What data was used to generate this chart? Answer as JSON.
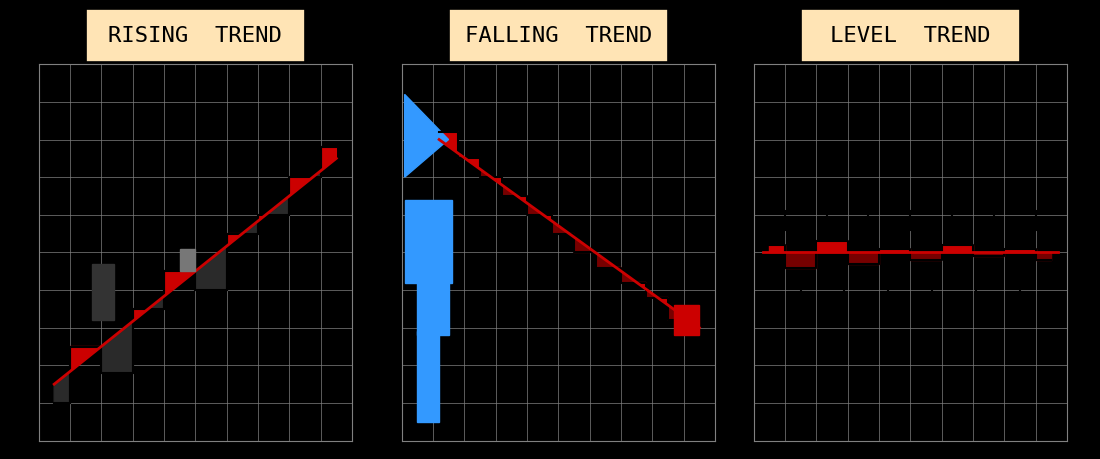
{
  "bg_color": "#000000",
  "grid_color": "#808080",
  "title_bg": "#FFE4B5",
  "title_color": "#000000",
  "panel_titles": [
    "RISING  TREND",
    "FALLING  TREND",
    "LEVEL  TREND"
  ],
  "fig_bg": "#000000",
  "panel_bg": "#000000",
  "blue_color": "#3399FF",
  "red_color": "#CC0000",
  "dark_color": "#222222",
  "gray_color": "#888888",
  "n_grid": 10,
  "xlim": [
    0,
    10
  ],
  "ylim": [
    0,
    10
  ],
  "title_fontsize": 16
}
